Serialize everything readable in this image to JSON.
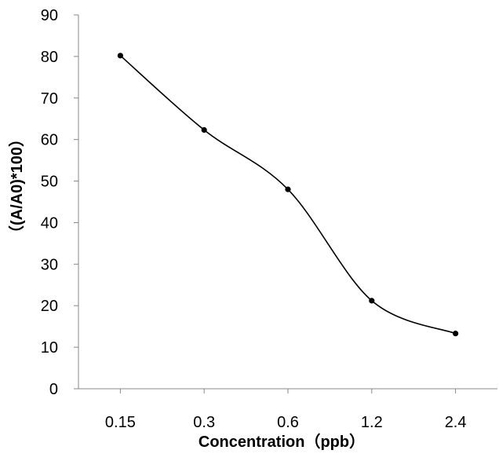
{
  "chart_data": {
    "type": "line",
    "categories": [
      "0.15",
      "0.3",
      "0.6",
      "1.2",
      "2.4"
    ],
    "series": [
      {
        "values": [
          80.2,
          62.3,
          48.0,
          21.2,
          13.3
        ]
      }
    ],
    "xlabel": "Concentration（ppb）",
    "ylabel": "（(A/A0)*100）",
    "ylim": [
      0,
      90
    ],
    "yticks": [
      "0",
      "10",
      "20",
      "30",
      "40",
      "50",
      "60",
      "70",
      "80",
      "90"
    ],
    "smooth": true,
    "markers": true,
    "grid": false,
    "colors": {
      "line": "#000000",
      "axis": "#888888"
    }
  }
}
